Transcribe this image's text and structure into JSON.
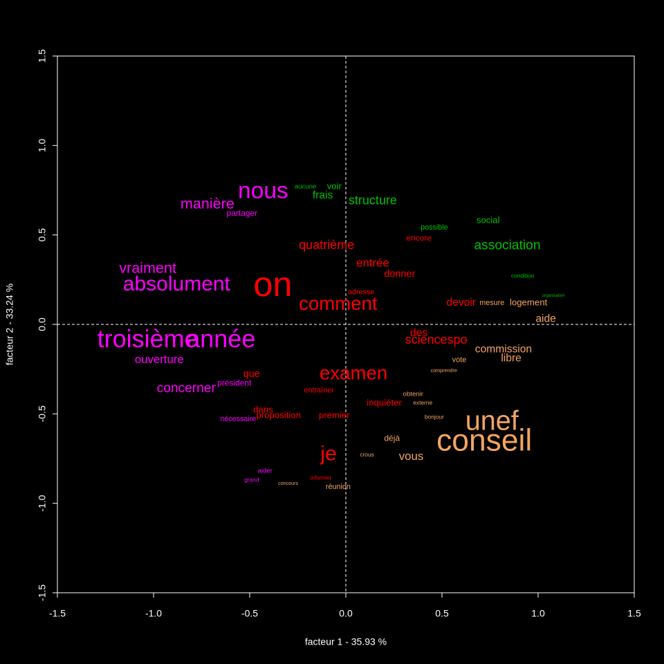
{
  "chart_data": {
    "type": "scatter",
    "x_label": "facteur  1  - 35.93 %",
    "y_label": "facteur  2  - 33.24 %",
    "xlim": [
      -1.5,
      1.5
    ],
    "ylim": [
      -1.5,
      1.5
    ],
    "xticks": [
      -1.5,
      {
        "value": -1,
        "label": "-1.0"
      },
      -0.5,
      {
        "value": 0,
        "label": "0.0"
      },
      0.5,
      {
        "value": 1,
        "label": "1.0"
      },
      1.5
    ],
    "yticks": [
      -1.5,
      {
        "value": -1,
        "label": "-1.0"
      },
      -0.5,
      {
        "value": 0,
        "label": "0.0"
      },
      0.5,
      {
        "value": 1,
        "label": "1.0"
      },
      1.5
    ],
    "zero_lines": true,
    "series": [
      {
        "color": "#00c000",
        "labels": [
          "structure",
          "association",
          "voir",
          "aucune",
          "social",
          "possible",
          "frais",
          "condition",
          "organisation"
        ],
        "x": [
          0.14,
          0.84,
          -0.06,
          -0.21,
          0.74,
          0.46,
          -0.12,
          0.92,
          1.08
        ],
        "values": [
          0.69,
          0.44,
          0.77,
          0.77,
          0.58,
          0.54,
          0.72,
          0.27,
          0.16
        ],
        "sizes": [
          1.5,
          1.6,
          1.1,
          0.8,
          1.1,
          0.9,
          1.3,
          0.7,
          0.5
        ]
      },
      {
        "color": "#ff00ff",
        "labels": [
          "troisième",
          "année",
          "nous",
          "manière",
          "absolument",
          "ouverture",
          "vraiment",
          "partager",
          "président",
          "concerner",
          "grand",
          "aider",
          "nécessaire"
        ],
        "x": [
          -1.03,
          -0.65,
          -0.43,
          -0.72,
          -0.88,
          -0.97,
          -1.03,
          -0.54,
          -0.58,
          -0.83,
          -0.49,
          -0.42,
          -0.56
        ],
        "values": [
          -0.09,
          -0.09,
          0.74,
          0.67,
          0.22,
          -0.2,
          0.31,
          0.62,
          -0.33,
          -0.36,
          -0.87,
          -0.82,
          -0.53
        ],
        "sizes": [
          3.0,
          3.0,
          2.8,
          1.8,
          2.5,
          1.4,
          1.8,
          1.0,
          1.0,
          1.6,
          0.7,
          0.8,
          0.9
        ]
      },
      {
        "color": "#ff0000",
        "labels": [
          "on",
          "comment",
          "examen",
          "quatrième",
          "entrée",
          "donner",
          "devoir",
          "sciencespo",
          "des",
          "inquiéter",
          "je",
          "que",
          "dans",
          "proposition",
          "entraîner",
          "informer",
          "encore",
          "adresse",
          "premier"
        ],
        "x": [
          -0.38,
          -0.04,
          0.04,
          -0.1,
          0.14,
          0.28,
          0.6,
          0.47,
          0.38,
          0.2,
          -0.09,
          -0.49,
          -0.43,
          -0.35,
          -0.14,
          -0.13,
          0.38,
          0.08,
          -0.06
        ],
        "values": [
          0.21,
          0.11,
          -0.28,
          0.44,
          0.34,
          0.28,
          0.12,
          -0.09,
          -0.05,
          -0.44,
          -0.73,
          -0.28,
          -0.48,
          -0.51,
          -0.37,
          -0.86,
          0.48,
          0.18,
          -0.51
        ],
        "sizes": [
          4.2,
          2.3,
          2.3,
          1.5,
          1.4,
          1.2,
          1.3,
          1.5,
          1.3,
          1.1,
          2.5,
          1.2,
          1.1,
          1.1,
          0.9,
          0.7,
          1.0,
          0.9,
          1.1
        ]
      },
      {
        "color": "#f4a460",
        "labels": [
          "conseil",
          "unef",
          "commission",
          "libre",
          "aide",
          "mesure",
          "logement",
          "vote",
          "obtenir",
          "réunion",
          "concours",
          "crous",
          "déjà",
          "vous",
          "externe",
          "bonjour",
          "comprendre"
        ],
        "x": [
          0.72,
          0.76,
          0.82,
          0.86,
          1.04,
          0.76,
          0.95,
          0.59,
          0.35,
          -0.04,
          -0.3,
          0.11,
          0.24,
          0.34,
          0.4,
          0.46,
          0.51
        ],
        "values": [
          -0.66,
          -0.55,
          -0.14,
          -0.19,
          0.03,
          0.12,
          0.12,
          -0.2,
          -0.39,
          -0.91,
          -0.89,
          -0.73,
          -0.64,
          -0.74,
          -0.44,
          -0.52,
          -0.26
        ],
        "sizes": [
          3.7,
          3.3,
          1.3,
          1.3,
          1.3,
          0.9,
          1.1,
          0.9,
          0.8,
          0.9,
          0.6,
          0.7,
          1.0,
          1.4,
          0.7,
          0.7,
          0.6
        ]
      }
    ]
  }
}
